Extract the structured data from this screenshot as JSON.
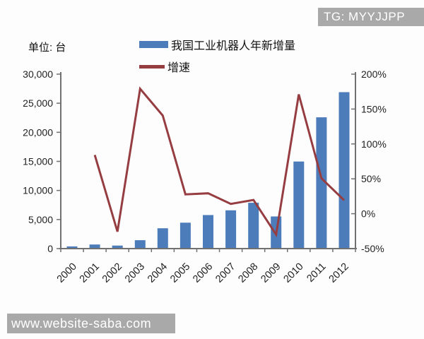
{
  "watermarks": {
    "top": "TG: MYYJJPP",
    "bottom": "www.website-saba.com"
  },
  "unit_label": "单位: 台",
  "legend": {
    "bar_series": "我国工业机器人年新增量",
    "line_series": "增速"
  },
  "colors": {
    "bar": "#4d7cba",
    "line": "#963d42",
    "axis": "#707070",
    "tick_text": "#1f1f1f",
    "watermark_bg": "#a9a9a9",
    "watermark_text": "#ffffff"
  },
  "chart_data": {
    "type": "bar",
    "combo": "bar+line",
    "title": "",
    "xlabel": "",
    "ylabel": "单位: 台",
    "grid": false,
    "legend_position": "top",
    "categories": [
      "2000",
      "2001",
      "2002",
      "2003",
      "2004",
      "2005",
      "2006",
      "2007",
      "2008",
      "2009",
      "2010",
      "2011",
      "2012"
    ],
    "series": [
      {
        "name": "我国工业机器人年新增量",
        "type": "bar",
        "axis": "left",
        "values": [
          380,
          700,
          520,
          1451,
          3493,
          4461,
          5770,
          6581,
          7879,
          5525,
          14978,
          22577,
          26902
        ]
      },
      {
        "name": "增速",
        "type": "line",
        "axis": "right",
        "unit": "%",
        "values": [
          null,
          84.2,
          -25.7,
          179.0,
          140.7,
          27.7,
          29.3,
          14.1,
          19.7,
          -29.9,
          171.1,
          50.7,
          19.2
        ]
      }
    ],
    "left_axis": {
      "min": 0,
      "max": 30000,
      "tick_labels": [
        "0",
        "5,000",
        "10,000",
        "15,000",
        "20,000",
        "25,000",
        "30,000"
      ]
    },
    "right_axis": {
      "min": -50,
      "max": 200,
      "tick_labels": [
        "-50%",
        "0%",
        "50%",
        "100%",
        "150%",
        "200%"
      ]
    }
  }
}
